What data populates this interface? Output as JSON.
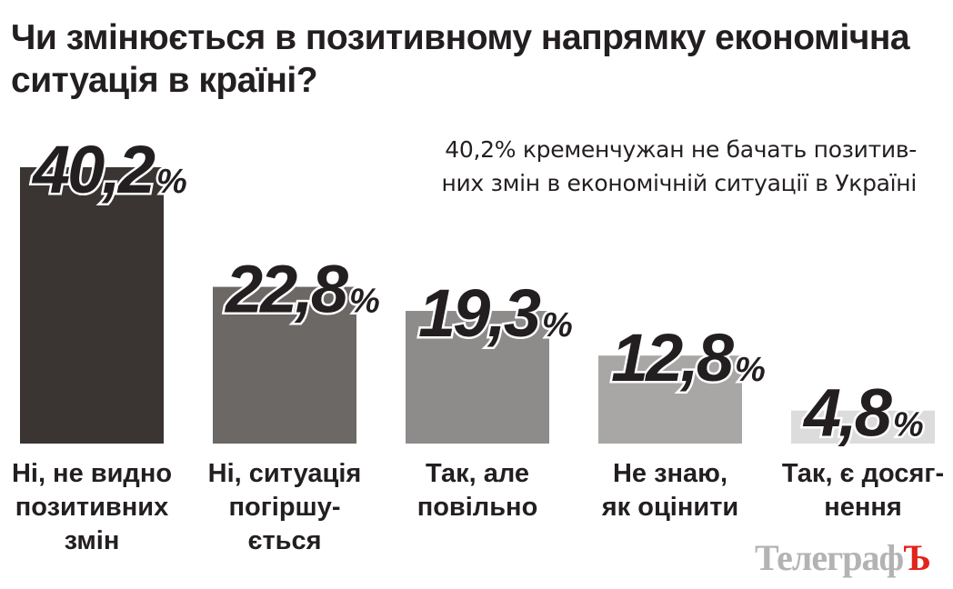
{
  "chart_data": {
    "type": "bar",
    "title": "Чи змінюється в позитивному напрямку економічна ситуація в країні?",
    "subtitle_lines": [
      "40,2% кременчужан не бачать позитив-",
      "них змін в економічній ситуації в Україні"
    ],
    "categories": [
      [
        "Ні, не видно",
        "позитивних",
        "змін"
      ],
      [
        "Ні, ситуація",
        "погіршу-",
        "ється"
      ],
      [
        "Так, але",
        "повільно"
      ],
      [
        "Не знаю,",
        "як оцінити"
      ],
      [
        "Так, є досяг-",
        "нення"
      ]
    ],
    "values": [
      40.2,
      22.8,
      19.3,
      12.8,
      4.8
    ],
    "value_labels": [
      "40,2",
      "22,8",
      "19,3",
      "12,8",
      "4,8"
    ],
    "unit": "%",
    "bar_colors": [
      "#3a3432",
      "#6b6866",
      "#8e8c8b",
      "#a8a7a6",
      "#dcdcdc"
    ],
    "ylim": [
      0,
      40.2
    ],
    "grid": false
  },
  "logo": {
    "text_main": "Телеграф",
    "text_last": "Ъ"
  }
}
